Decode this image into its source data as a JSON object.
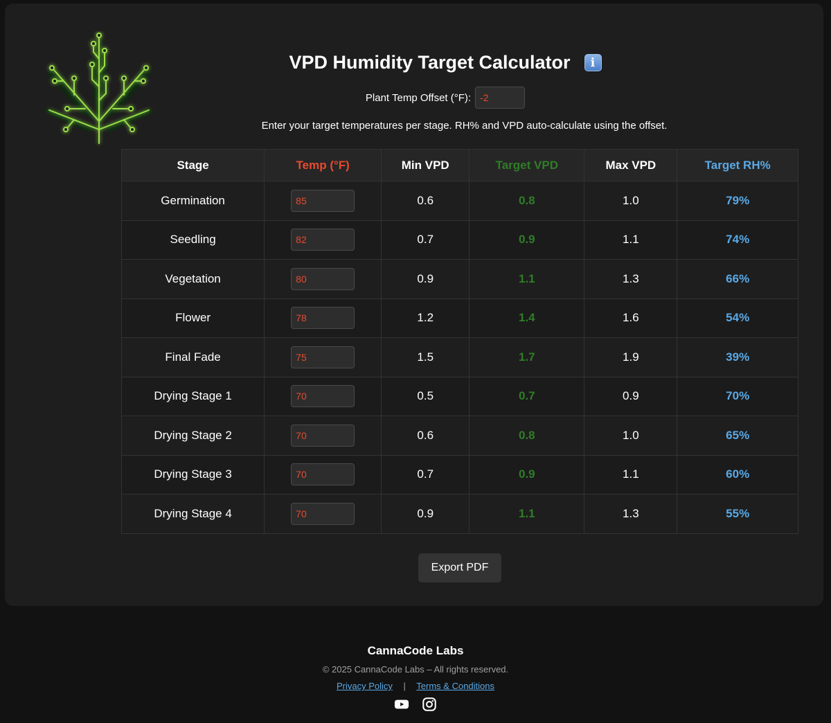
{
  "header": {
    "title": "VPD Humidity Target Calculator",
    "offset_label": "Plant Temp Offset (°F):",
    "offset_value": "-2",
    "instructions": "Enter your target temperatures per stage. RH% and VPD auto-calculate using the offset."
  },
  "table": {
    "headers": [
      "Stage",
      "Temp (°F)",
      "Min VPD",
      "Target VPD",
      "Max VPD",
      "Target RH%"
    ],
    "rows": [
      {
        "stage": "Germination",
        "temp": "85",
        "min_vpd": "0.6",
        "target_vpd": "0.8",
        "max_vpd": "1.0",
        "target_rh": "79%"
      },
      {
        "stage": "Seedling",
        "temp": "82",
        "min_vpd": "0.7",
        "target_vpd": "0.9",
        "max_vpd": "1.1",
        "target_rh": "74%"
      },
      {
        "stage": "Vegetation",
        "temp": "80",
        "min_vpd": "0.9",
        "target_vpd": "1.1",
        "max_vpd": "1.3",
        "target_rh": "66%"
      },
      {
        "stage": "Flower",
        "temp": "78",
        "min_vpd": "1.2",
        "target_vpd": "1.4",
        "max_vpd": "1.6",
        "target_rh": "54%"
      },
      {
        "stage": "Final Fade",
        "temp": "75",
        "min_vpd": "1.5",
        "target_vpd": "1.7",
        "max_vpd": "1.9",
        "target_rh": "39%"
      },
      {
        "stage": "Drying Stage 1",
        "temp": "70",
        "min_vpd": "0.5",
        "target_vpd": "0.7",
        "max_vpd": "0.9",
        "target_rh": "70%"
      },
      {
        "stage": "Drying Stage 2",
        "temp": "70",
        "min_vpd": "0.6",
        "target_vpd": "0.8",
        "max_vpd": "1.0",
        "target_rh": "65%"
      },
      {
        "stage": "Drying Stage 3",
        "temp": "70",
        "min_vpd": "0.7",
        "target_vpd": "0.9",
        "max_vpd": "1.1",
        "target_rh": "60%"
      },
      {
        "stage": "Drying Stage 4",
        "temp": "70",
        "min_vpd": "0.9",
        "target_vpd": "1.1",
        "max_vpd": "1.3",
        "target_rh": "55%"
      }
    ]
  },
  "actions": {
    "export_label": "Export PDF"
  },
  "footer": {
    "brand": "CannaCode Labs",
    "copyright": "© 2025 CannaCode Labs – All rights reserved.",
    "privacy_label": "Privacy Policy",
    "separator": "|",
    "terms_label": "Terms & Conditions",
    "social_icons": [
      "youtube-icon",
      "instagram-icon"
    ]
  },
  "colors": {
    "temp": "#e84b2f",
    "target_vpd": "#2f7d26",
    "target_rh": "#5aa9e6",
    "logo_green": "#9be04a"
  }
}
